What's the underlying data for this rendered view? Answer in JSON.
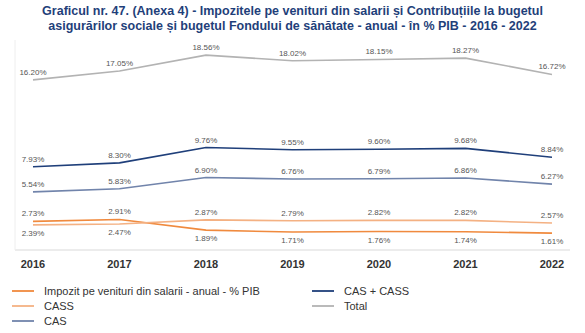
{
  "chart_data": {
    "type": "line",
    "title": "Graficul nr. 47. (Anexa 4) - Impozitele pe venituri din salarii și Contribuțiile la bugetul asigurărilor sociale și bugetul Fondului de sănătate - anual - în % PIB - 2016 - 2022",
    "categories": [
      "2016",
      "2017",
      "2018",
      "2019",
      "2020",
      "2021",
      "2022"
    ],
    "series": [
      {
        "name": "Impozit pe venituri din salarii - anual - % PIB",
        "color": "#f08a3e",
        "values": [
          2.73,
          2.91,
          1.89,
          1.71,
          1.76,
          1.74,
          1.61
        ],
        "value_labels": [
          "2.73%",
          "2.91%",
          "1.89%",
          "1.71%",
          "1.76%",
          "1.74%",
          "1.61%"
        ]
      },
      {
        "name": "CASS",
        "color": "#f4b183",
        "values": [
          2.39,
          2.47,
          2.87,
          2.79,
          2.82,
          2.82,
          2.57
        ],
        "value_labels": [
          "2.39%",
          "2.47%",
          "2.87%",
          "2.79%",
          "2.82%",
          "2.82%",
          "2.57%"
        ]
      },
      {
        "name": "CAS",
        "color": "#7184ab",
        "values": [
          5.54,
          5.83,
          6.9,
          6.76,
          6.79,
          6.86,
          6.27
        ],
        "value_labels": [
          "5.54%",
          "5.83%",
          "6.90%",
          "6.76%",
          "6.79%",
          "6.86%",
          "6.27%"
        ]
      },
      {
        "name": "CAS + CASS",
        "color": "#1f3f7a",
        "values": [
          7.93,
          8.3,
          9.76,
          9.55,
          9.6,
          9.68,
          8.84
        ],
        "value_labels": [
          "7.93%",
          "8.30%",
          "9.76%",
          "9.55%",
          "9.60%",
          "9.68%",
          "8.84%"
        ]
      },
      {
        "name": "Total",
        "color": "#b3b3b3",
        "values": [
          16.2,
          17.05,
          18.56,
          18.02,
          18.15,
          18.27,
          16.72
        ],
        "value_labels": [
          "16.20%",
          "17.05%",
          "18.56%",
          "18.02%",
          "18.15%",
          "18.27%",
          "16.72%"
        ]
      }
    ],
    "ylim": [
      0,
      20
    ],
    "yticks": [],
    "grid": false,
    "data_labels": true,
    "tick_labels": "x",
    "legend": "bottom"
  }
}
